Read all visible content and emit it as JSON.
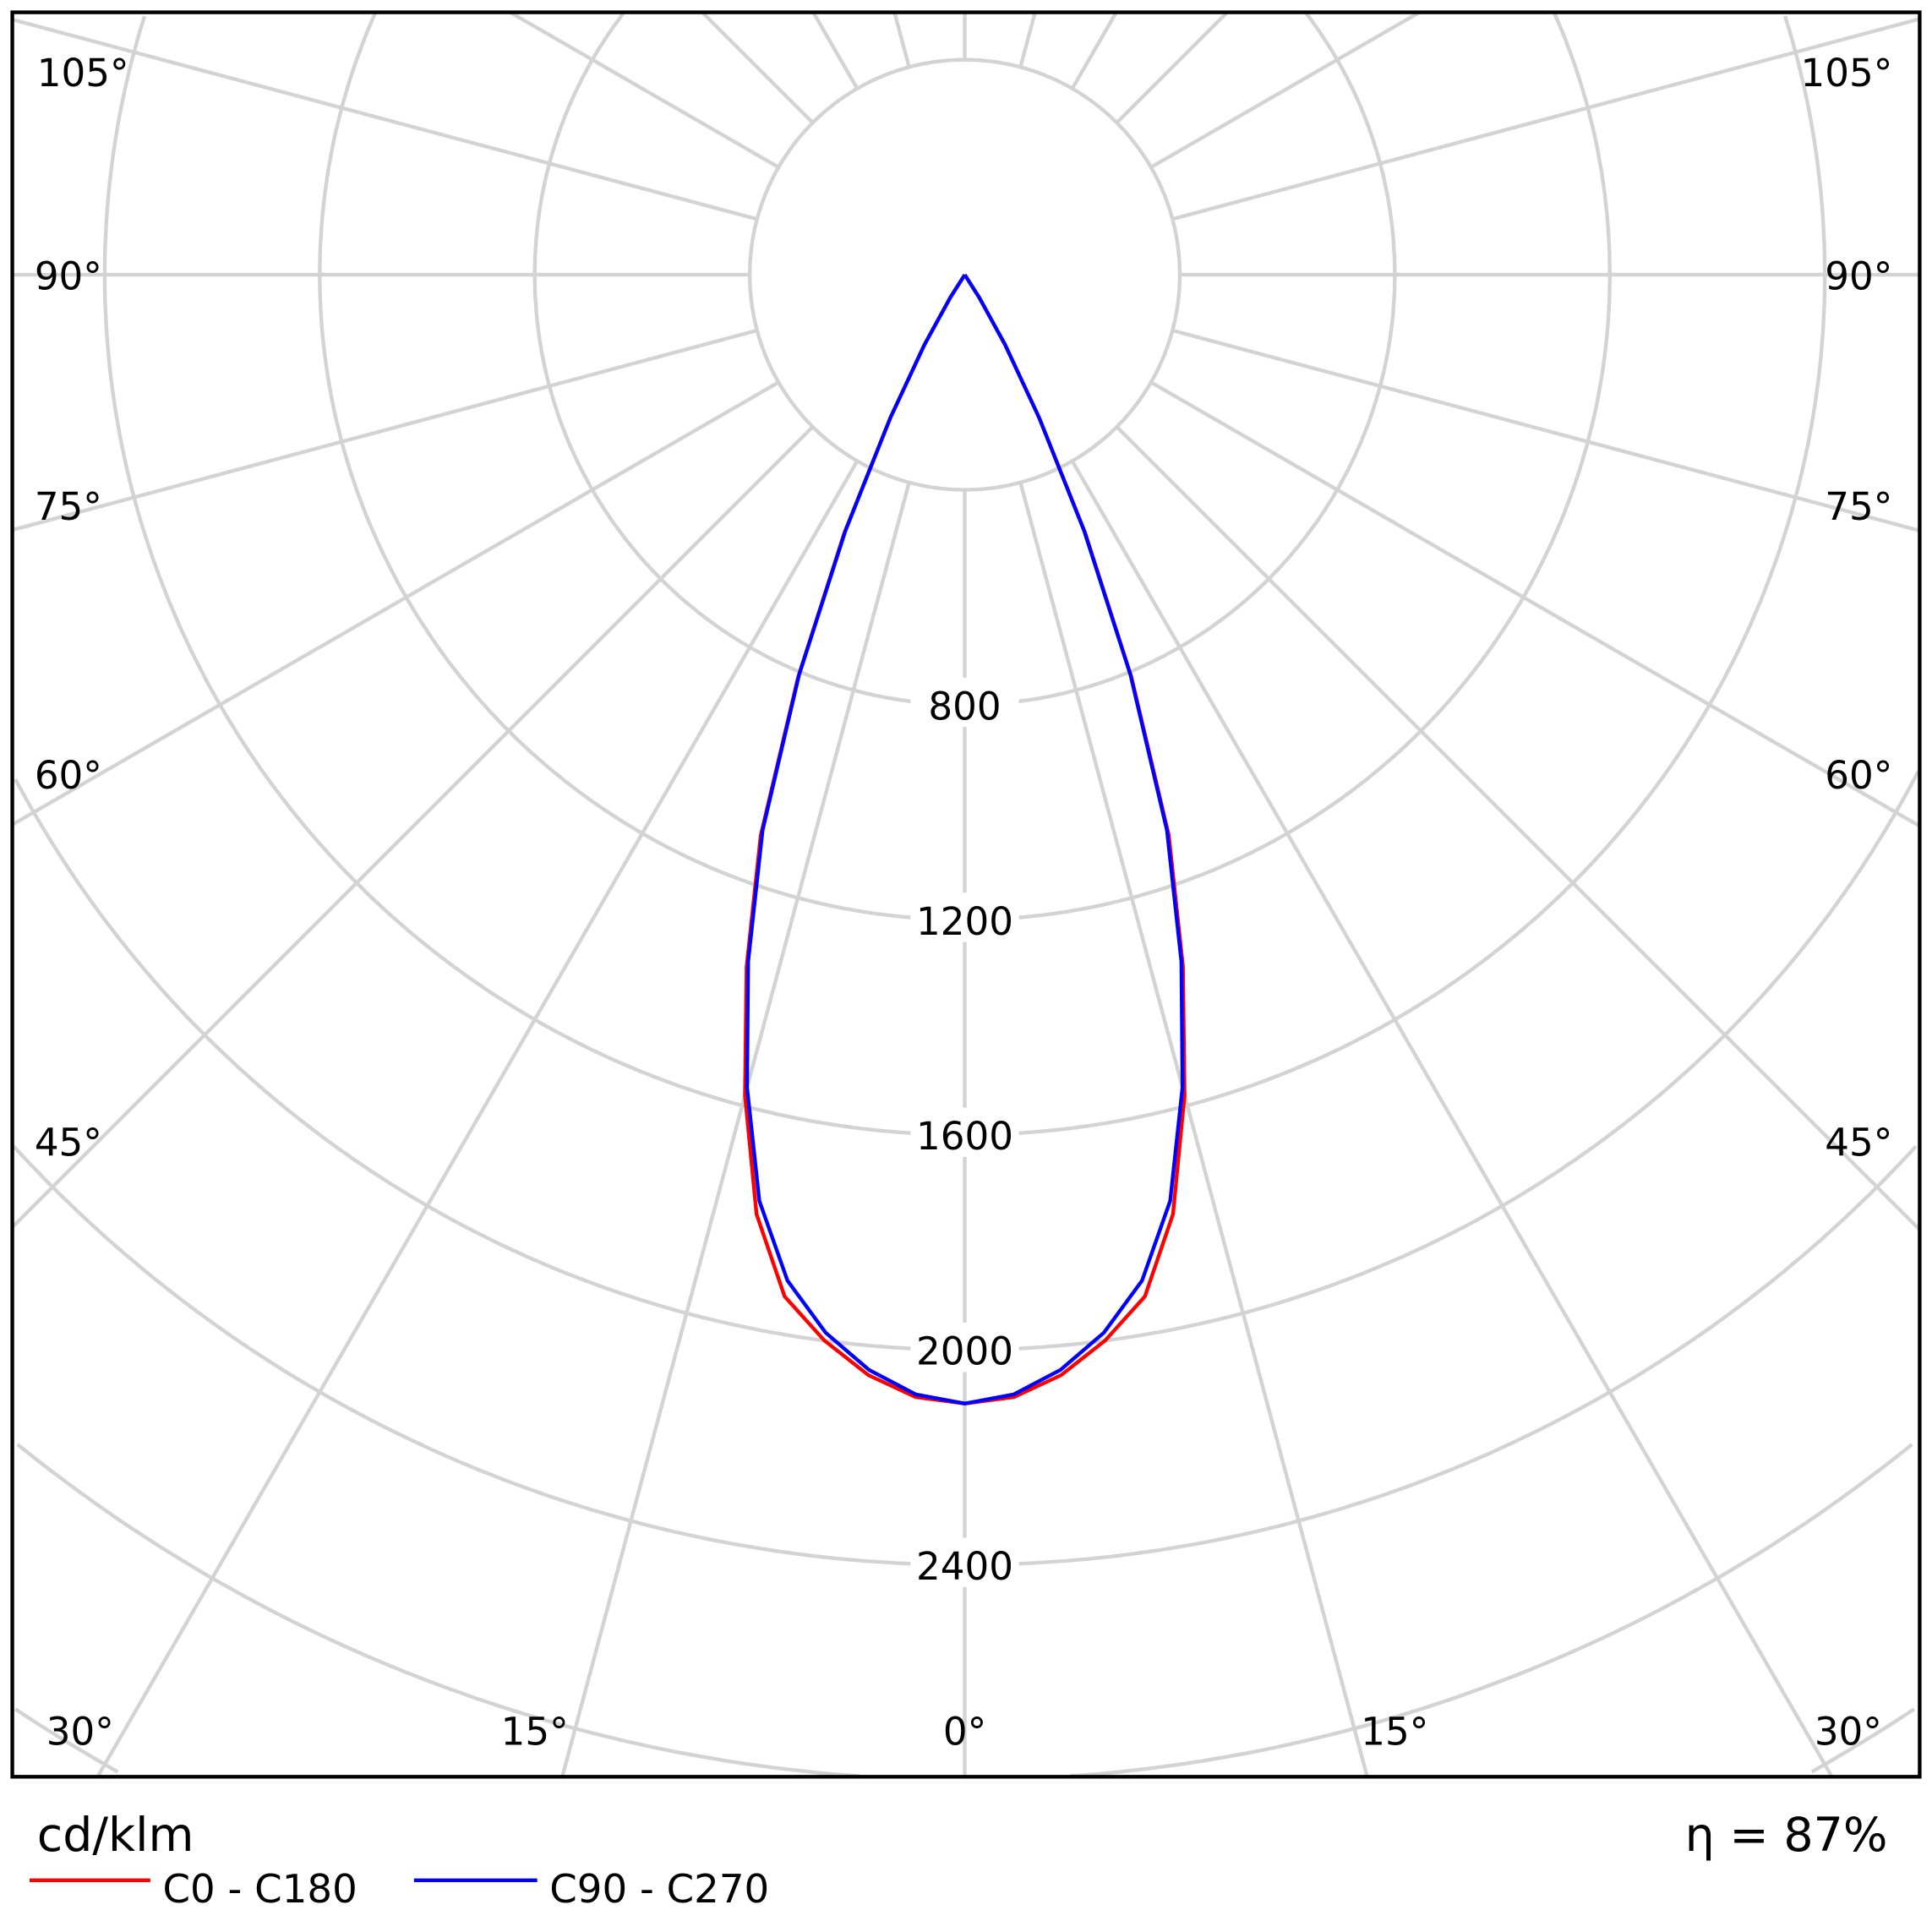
{
  "chart_data": {
    "type": "polar",
    "unit_label": "cd/klm",
    "efficiency_label": "η = 87%",
    "radial_ticks": [
      400,
      800,
      1200,
      1600,
      2000,
      2400,
      2800,
      3200,
      3600
    ],
    "radial_tick_labels": [
      "800",
      "1200",
      "1600",
      "2000",
      "2400"
    ],
    "angle_labels": {
      "bottom": [
        "30°",
        "15°",
        "0°",
        "15°",
        "30°"
      ],
      "left": [
        "105°",
        "90°",
        "75°",
        "60°",
        "45°"
      ],
      "right": [
        "105°",
        "90°",
        "75°",
        "60°",
        "45°"
      ]
    },
    "grid": true,
    "legend_position": "bottom-left",
    "angles_deg": [
      0,
      2.5,
      5,
      7.5,
      10,
      12.5,
      15,
      17.5,
      20,
      22.5,
      25,
      27.5,
      30,
      32.5,
      35
    ],
    "series": [
      {
        "name": "C0 - C180",
        "color": "#ff0000",
        "values": [
          2100,
          2090,
          2055,
          2000,
          1930,
          1790,
          1580,
          1350,
          1110,
          810,
          530,
          300,
          150,
          50,
          0
        ]
      },
      {
        "name": "C90 - C270",
        "color": "#0000ff",
        "values": [
          2100,
          2085,
          2045,
          1985,
          1900,
          1765,
          1565,
          1340,
          1100,
          805,
          525,
          300,
          150,
          50,
          0
        ]
      }
    ]
  }
}
